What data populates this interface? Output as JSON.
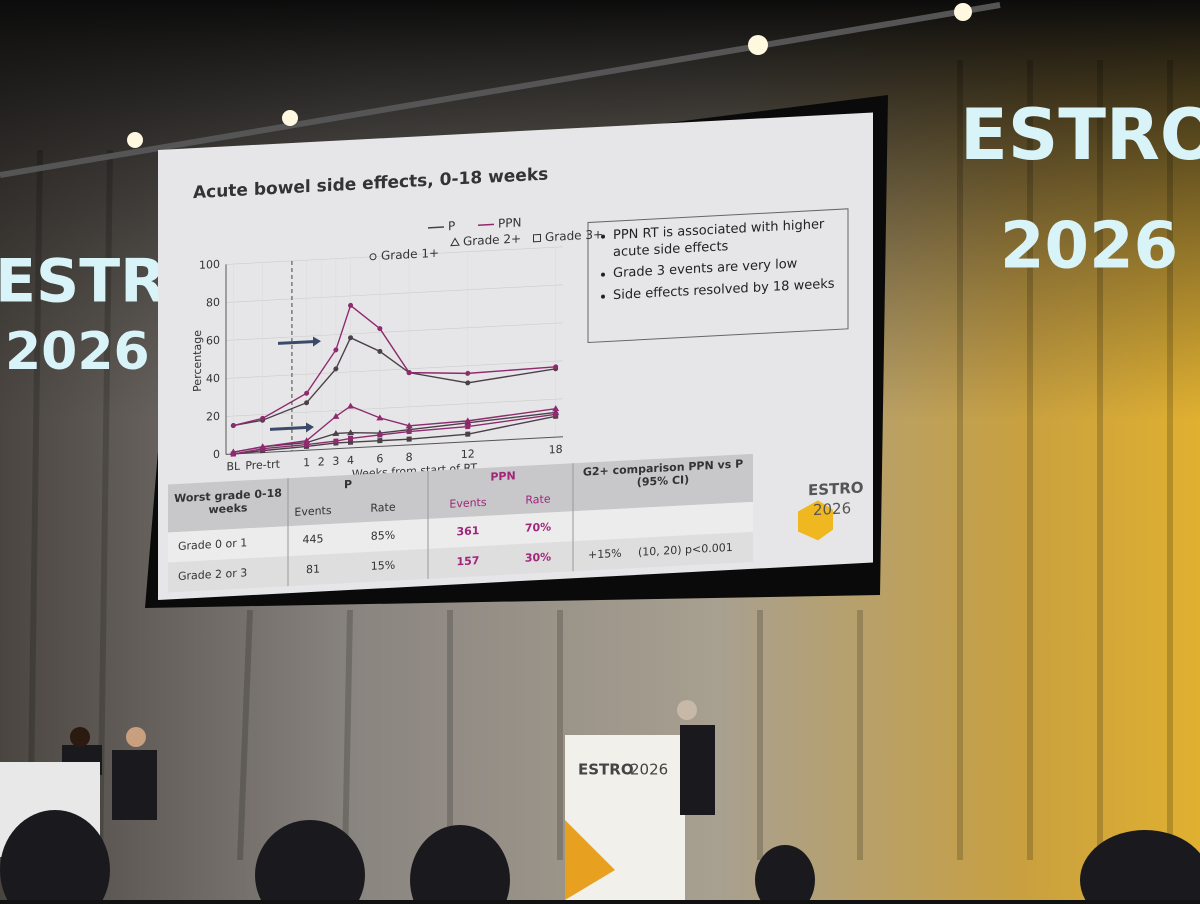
{
  "slide": {
    "title": "Acute bowel side effects, 0-18 weeks",
    "bullets": [
      "PPN RT is associated with higher acute side effects",
      "Grade 3 events are very low",
      "Side effects resolved by 18 weeks"
    ],
    "logo": {
      "name": "ESTRO",
      "year": "2026"
    }
  },
  "chart_data": {
    "type": "line",
    "ylabel": "Percentage",
    "xlabel": "Weeks from start of RT",
    "x": [
      -4,
      -2,
      1,
      3,
      4,
      6,
      8,
      12,
      18
    ],
    "xlim": [
      -4.5,
      18.5
    ],
    "xticks": [
      {
        "value": -4,
        "label": "BL"
      },
      {
        "value": -2,
        "label": "Pre-trt"
      },
      1,
      2,
      3,
      4,
      6,
      8,
      12,
      18
    ],
    "ylim": [
      0,
      100
    ],
    "yticks": [
      0,
      20,
      40,
      60,
      80,
      100
    ],
    "grid": true,
    "grades": [
      {
        "name": "Grade 1+",
        "marker": "circle"
      },
      {
        "name": "Grade 2+",
        "marker": "triangle"
      },
      {
        "name": "Grade 3+",
        "marker": "square"
      }
    ],
    "series": [
      {
        "name": "P",
        "color": "#4a4048",
        "grades": [
          [
            15,
            17,
            25,
            42,
            58,
            50,
            38,
            31,
            36
          ],
          [
            1,
            3,
            4,
            8,
            8,
            7,
            8,
            10,
            13
          ],
          [
            0,
            1,
            2,
            3,
            3,
            3,
            3,
            4,
            11
          ]
        ]
      },
      {
        "name": "PPN",
        "color": "#8e2a6e",
        "grades": [
          [
            15,
            18,
            30,
            52,
            75,
            62,
            38,
            36,
            37
          ],
          [
            1,
            3,
            5,
            17,
            22,
            15,
            10,
            11,
            15
          ],
          [
            0,
            2,
            3,
            4,
            5,
            6,
            7,
            8,
            12
          ]
        ]
      }
    ]
  },
  "table": {
    "header": [
      "Worst grade 0-18 weeks",
      "P",
      "PPN",
      "G2+ comparison PPN vs P (95% CI)"
    ],
    "subheader": [
      "Events",
      "Rate",
      "Events",
      "Rate"
    ],
    "rows": [
      [
        "Grade 0 or 1",
        445,
        "85%",
        361,
        "70%",
        "",
        ""
      ],
      [
        "Grade 2 or 3",
        81,
        "15%",
        157,
        "30%",
        "+15%",
        "(10, 20) p<0.001"
      ]
    ]
  },
  "stage": {
    "banner": [
      "ESTRO",
      "2026"
    ],
    "podium": [
      "ESTRO",
      "2026"
    ]
  }
}
